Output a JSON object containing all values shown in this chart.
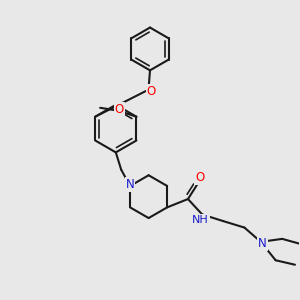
{
  "background_color": "#e8e8e8",
  "bond_color": "#1a1a1a",
  "bond_width": 1.5,
  "O_color": "#ff0000",
  "N_color": "#1a1acc",
  "C_color": "#1a1a1a",
  "figsize": [
    3.0,
    3.0
  ],
  "dpi": 100,
  "xlim": [
    0,
    10
  ],
  "ylim": [
    0,
    10
  ]
}
